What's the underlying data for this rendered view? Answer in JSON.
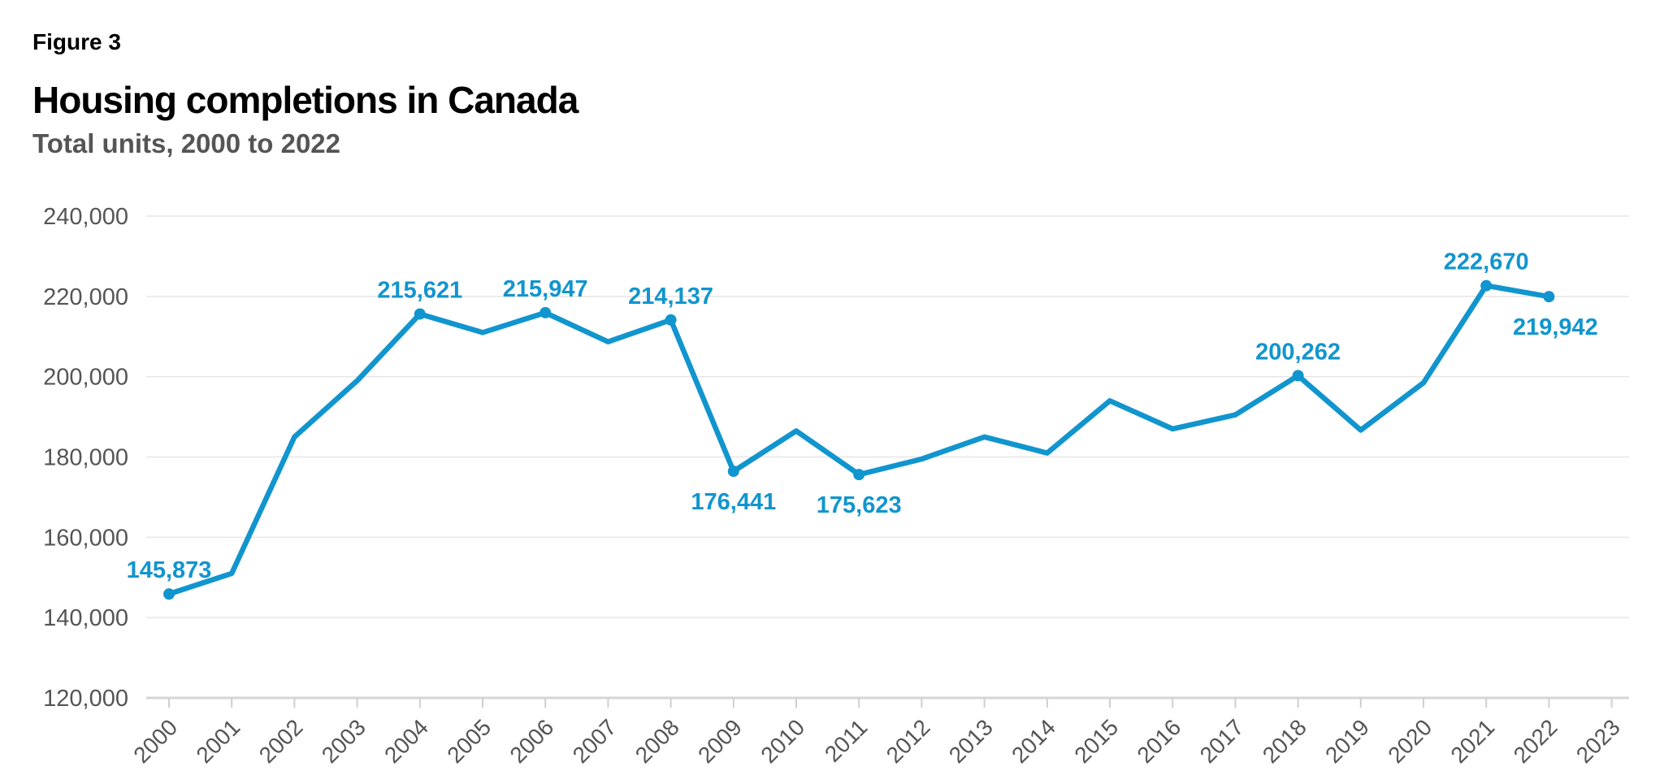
{
  "figure_label": "Figure 3",
  "chart_data": {
    "type": "line",
    "title": "Housing completions in Canada",
    "subtitle": "Total units, 2000 to 2022",
    "xlabel": "",
    "ylabel": "",
    "x_ticks": [
      "2000",
      "2001",
      "2002",
      "2003",
      "2004",
      "2005",
      "2006",
      "2007",
      "2008",
      "2009",
      "2010",
      "2011",
      "2012",
      "2013",
      "2014",
      "2015",
      "2016",
      "2017",
      "2018",
      "2019",
      "2020",
      "2021",
      "2022",
      "2023"
    ],
    "y_ticks": [
      "120,000",
      "140,000",
      "160,000",
      "180,000",
      "200,000",
      "220,000",
      "240,000"
    ],
    "ylim": [
      120000,
      240000
    ],
    "grid": true,
    "color": "#1195CE",
    "series": [
      {
        "x": [
          2000,
          2001,
          2002,
          2003,
          2004,
          2005,
          2006,
          2007,
          2008,
          2009,
          2010,
          2011,
          2012,
          2013,
          2014,
          2015,
          2016,
          2017,
          2018,
          2019,
          2020,
          2021,
          2022
        ],
        "values": [
          145873,
          151000,
          185000,
          199000,
          215621,
          211000,
          215947,
          208700,
          214137,
          176441,
          186500,
          175623,
          179500,
          185000,
          181000,
          194000,
          187000,
          190500,
          200262,
          186700,
          198500,
          222670,
          219942
        ]
      }
    ],
    "data_labels": [
      {
        "x": 2000,
        "text": "145,873",
        "pos": "above",
        "dot": true
      },
      {
        "x": 2004,
        "text": "215,621",
        "pos": "above",
        "dot": true
      },
      {
        "x": 2006,
        "text": "215,947",
        "pos": "above",
        "dot": true
      },
      {
        "x": 2008,
        "text": "214,137",
        "pos": "above",
        "dot": true
      },
      {
        "x": 2009,
        "text": "176,441",
        "pos": "below",
        "dot": true
      },
      {
        "x": 2011,
        "text": "175,623",
        "pos": "below",
        "dot": true
      },
      {
        "x": 2018,
        "text": "200,262",
        "pos": "above",
        "dot": true
      },
      {
        "x": 2021,
        "text": "222,670",
        "pos": "above",
        "dot": true
      },
      {
        "x": 2022,
        "text": "219,942",
        "pos": "below",
        "dot": true
      }
    ]
  }
}
